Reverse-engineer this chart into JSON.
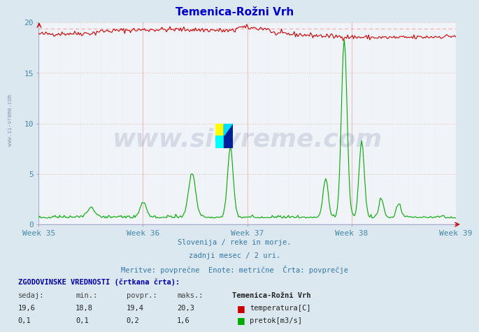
{
  "title": "Temenica-Rožni Vrh",
  "title_color": "#0000cc",
  "bg_color": "#dce8f0",
  "plot_bg_color": "#f0f4f8",
  "grid_color_h": "#e8c8c8",
  "grid_color_v": "#c8c8e8",
  "xlabel_color": "#4488aa",
  "ylim": [
    0,
    20
  ],
  "yticks": [
    0,
    5,
    10,
    15,
    20
  ],
  "weeks": [
    "Week 35",
    "Week 36",
    "Week 37",
    "Week 38",
    "Week 39"
  ],
  "temp_color": "#cc0000",
  "flow_color": "#00aa00",
  "avg_temp_color": "#ff9999",
  "watermark_text": "www.si-vreme.com",
  "watermark_color": "#1a3a7a",
  "subtitle1": "Slovenija / reke in morje.",
  "subtitle2": "zadnji mesec / 2 uri.",
  "subtitle3": "Meritve: povprečne  Enote: metrične  Črta: povprečje",
  "subtitle_color": "#3377aa",
  "table_title": "ZGODOVINSKE VREDNOSTI (črtkana črta):",
  "col_headers": [
    "sedaj:",
    "min.:",
    "povpr.:",
    "maks.:"
  ],
  "row1_vals": [
    "19,6",
    "18,8",
    "19,4",
    "20,3"
  ],
  "row2_vals": [
    "0,1",
    "0,1",
    "0,2",
    "1,6"
  ],
  "legend_title": "Temenica-Rožni Vrh",
  "legend1": "temperatura[C]",
  "legend2": "pretok[m3/s]",
  "n_points": 360,
  "temp_avg": 19.4,
  "flow_max_scale": 20.0,
  "flow_real_max": 1.6
}
